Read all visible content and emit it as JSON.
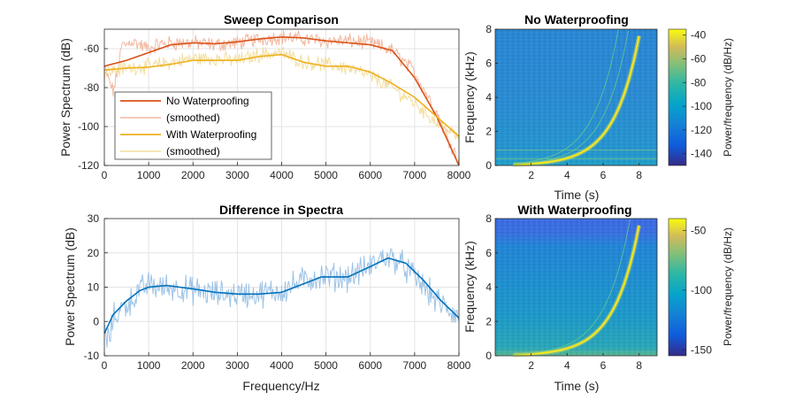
{
  "chart_data": [
    {
      "type": "line",
      "title": "Sweep Comparison",
      "xlabel": "",
      "ylabel": "Power Spectrum (dB)",
      "xlim": [
        0,
        8000
      ],
      "ylim": [
        -120,
        -50
      ],
      "xticks": [
        "0",
        "1000",
        "2000",
        "3000",
        "4000",
        "5000",
        "6000",
        "7000",
        "8000"
      ],
      "yticks": [
        "-120",
        "-100",
        "-80",
        "-60"
      ],
      "grid": true,
      "legend_position": "bottom-left",
      "series": [
        {
          "name": "No Waterproofing",
          "color": "#D95319",
          "style": "smooth",
          "x": [
            0,
            500,
            1000,
            1500,
            2000,
            2500,
            3000,
            3500,
            4000,
            4500,
            5000,
            5500,
            6000,
            6500,
            7000,
            7500,
            8000
          ],
          "values": [
            -69,
            -66,
            -62,
            -58,
            -57,
            -57.5,
            -56.5,
            -55,
            -54,
            -54.5,
            -56,
            -57,
            -58,
            -61,
            -75,
            -95,
            -120
          ]
        },
        {
          "name": "(smoothed)",
          "color": "#F2B8A0",
          "style": "noisy",
          "x": [
            0,
            100,
            200,
            300,
            400,
            500,
            600,
            700,
            800,
            1000,
            1200,
            1500,
            2000,
            2500,
            3000,
            3500,
            4000,
            4500,
            5000,
            5500,
            6000,
            6500,
            7000,
            7500,
            8000
          ],
          "values": [
            -70,
            -76,
            -82,
            -72,
            -58,
            -58,
            -56,
            -57,
            -58,
            -60,
            -58,
            -57,
            -57,
            -58,
            -57,
            -55,
            -54,
            -55,
            -56,
            -56,
            -57,
            -61,
            -72,
            -93,
            -118
          ]
        },
        {
          "name": "With Waterproofing",
          "color": "#EDB120",
          "style": "smooth",
          "x": [
            0,
            500,
            1000,
            1500,
            2000,
            2500,
            3000,
            3500,
            4000,
            4500,
            5000,
            5500,
            6000,
            6500,
            7000,
            7500,
            8000
          ],
          "values": [
            -71,
            -70,
            -69.5,
            -68,
            -66,
            -66,
            -66,
            -64,
            -63,
            -67,
            -69,
            -69,
            -72,
            -78,
            -85,
            -95,
            -105
          ]
        },
        {
          "name": "(smoothed)",
          "color": "#F3DE9E",
          "style": "noisy",
          "x": [
            0,
            500,
            1000,
            1500,
            2000,
            2500,
            3000,
            3500,
            4000,
            4500,
            5000,
            5500,
            6000,
            6500,
            7000,
            7500,
            8000
          ],
          "values": [
            -72,
            -70,
            -69,
            -67,
            -65,
            -65,
            -66,
            -63,
            -62,
            -67,
            -68,
            -70,
            -74,
            -80,
            -88,
            -98,
            -106
          ]
        }
      ]
    },
    {
      "type": "line",
      "title": "Difference in Spectra",
      "xlabel": "Frequency/Hz",
      "ylabel": "Power Spectrum (dB)",
      "xlim": [
        0,
        8000
      ],
      "ylim": [
        -10,
        30
      ],
      "xticks": [
        "0",
        "1000",
        "2000",
        "3000",
        "4000",
        "5000",
        "6000",
        "7000",
        "8000"
      ],
      "yticks": [
        "-10",
        "0",
        "10",
        "20",
        "30"
      ],
      "grid": true,
      "series": [
        {
          "color": "#9DC3E6",
          "style": "noisy",
          "x": [
            0,
            100,
            200,
            400,
            600,
            800,
            1000,
            1200,
            1500,
            2000,
            2500,
            3000,
            3500,
            4000,
            4500,
            4800,
            5000,
            5500,
            6000,
            6300,
            6600,
            7000,
            7500,
            8000
          ],
          "values": [
            -3,
            -6,
            1,
            4,
            6,
            9,
            11,
            10,
            10,
            9,
            8,
            8,
            8,
            9,
            12,
            13,
            13,
            13,
            16,
            19,
            18,
            13,
            6,
            1
          ]
        },
        {
          "color": "#0072BD",
          "style": "smooth",
          "x": [
            0,
            200,
            500,
            800,
            1000,
            1400,
            2000,
            2500,
            3000,
            3500,
            4000,
            4500,
            4900,
            5500,
            6000,
            6400,
            6800,
            7200,
            7600,
            8000
          ],
          "values": [
            -3.5,
            2,
            6,
            9,
            10,
            10.5,
            9.5,
            8.5,
            8,
            8,
            8.5,
            11,
            13,
            13,
            16,
            18.5,
            17,
            12,
            6,
            1
          ]
        }
      ]
    },
    {
      "type": "heatmap",
      "title": "No Waterproofing",
      "xlabel": "Time (s)",
      "ylabel": "Frequency (kHz)",
      "xlim": [
        0,
        9
      ],
      "ylim": [
        0,
        8
      ],
      "xticks": [
        "2",
        "4",
        "6",
        "8"
      ],
      "yticks": [
        "0",
        "2",
        "4",
        "6",
        "8"
      ],
      "colorbar": {
        "label": "Power/frequency (dB/Hz)",
        "ticks": [
          "-40",
          "-60",
          "-80",
          "-100",
          "-120",
          "-140"
        ],
        "range": [
          -150,
          -35
        ]
      }
    },
    {
      "type": "heatmap",
      "title": "With Waterproofing",
      "xlabel": "Time (s)",
      "ylabel": "Frequency (kHz)",
      "xlim": [
        0,
        9
      ],
      "ylim": [
        0,
        8
      ],
      "xticks": [
        "2",
        "4",
        "6",
        "8"
      ],
      "yticks": [
        "0",
        "2",
        "4",
        "6",
        "8"
      ],
      "colorbar": {
        "label": "Power/frequency (dB/Hz)",
        "ticks": [
          "-50",
          "-100",
          "-150"
        ],
        "range": [
          -155,
          -40
        ]
      }
    }
  ],
  "colors": {
    "spec_background": "#2E86C8",
    "sweep": "#F5E620",
    "axis": "#262626",
    "grid": "#E6E6E6"
  }
}
